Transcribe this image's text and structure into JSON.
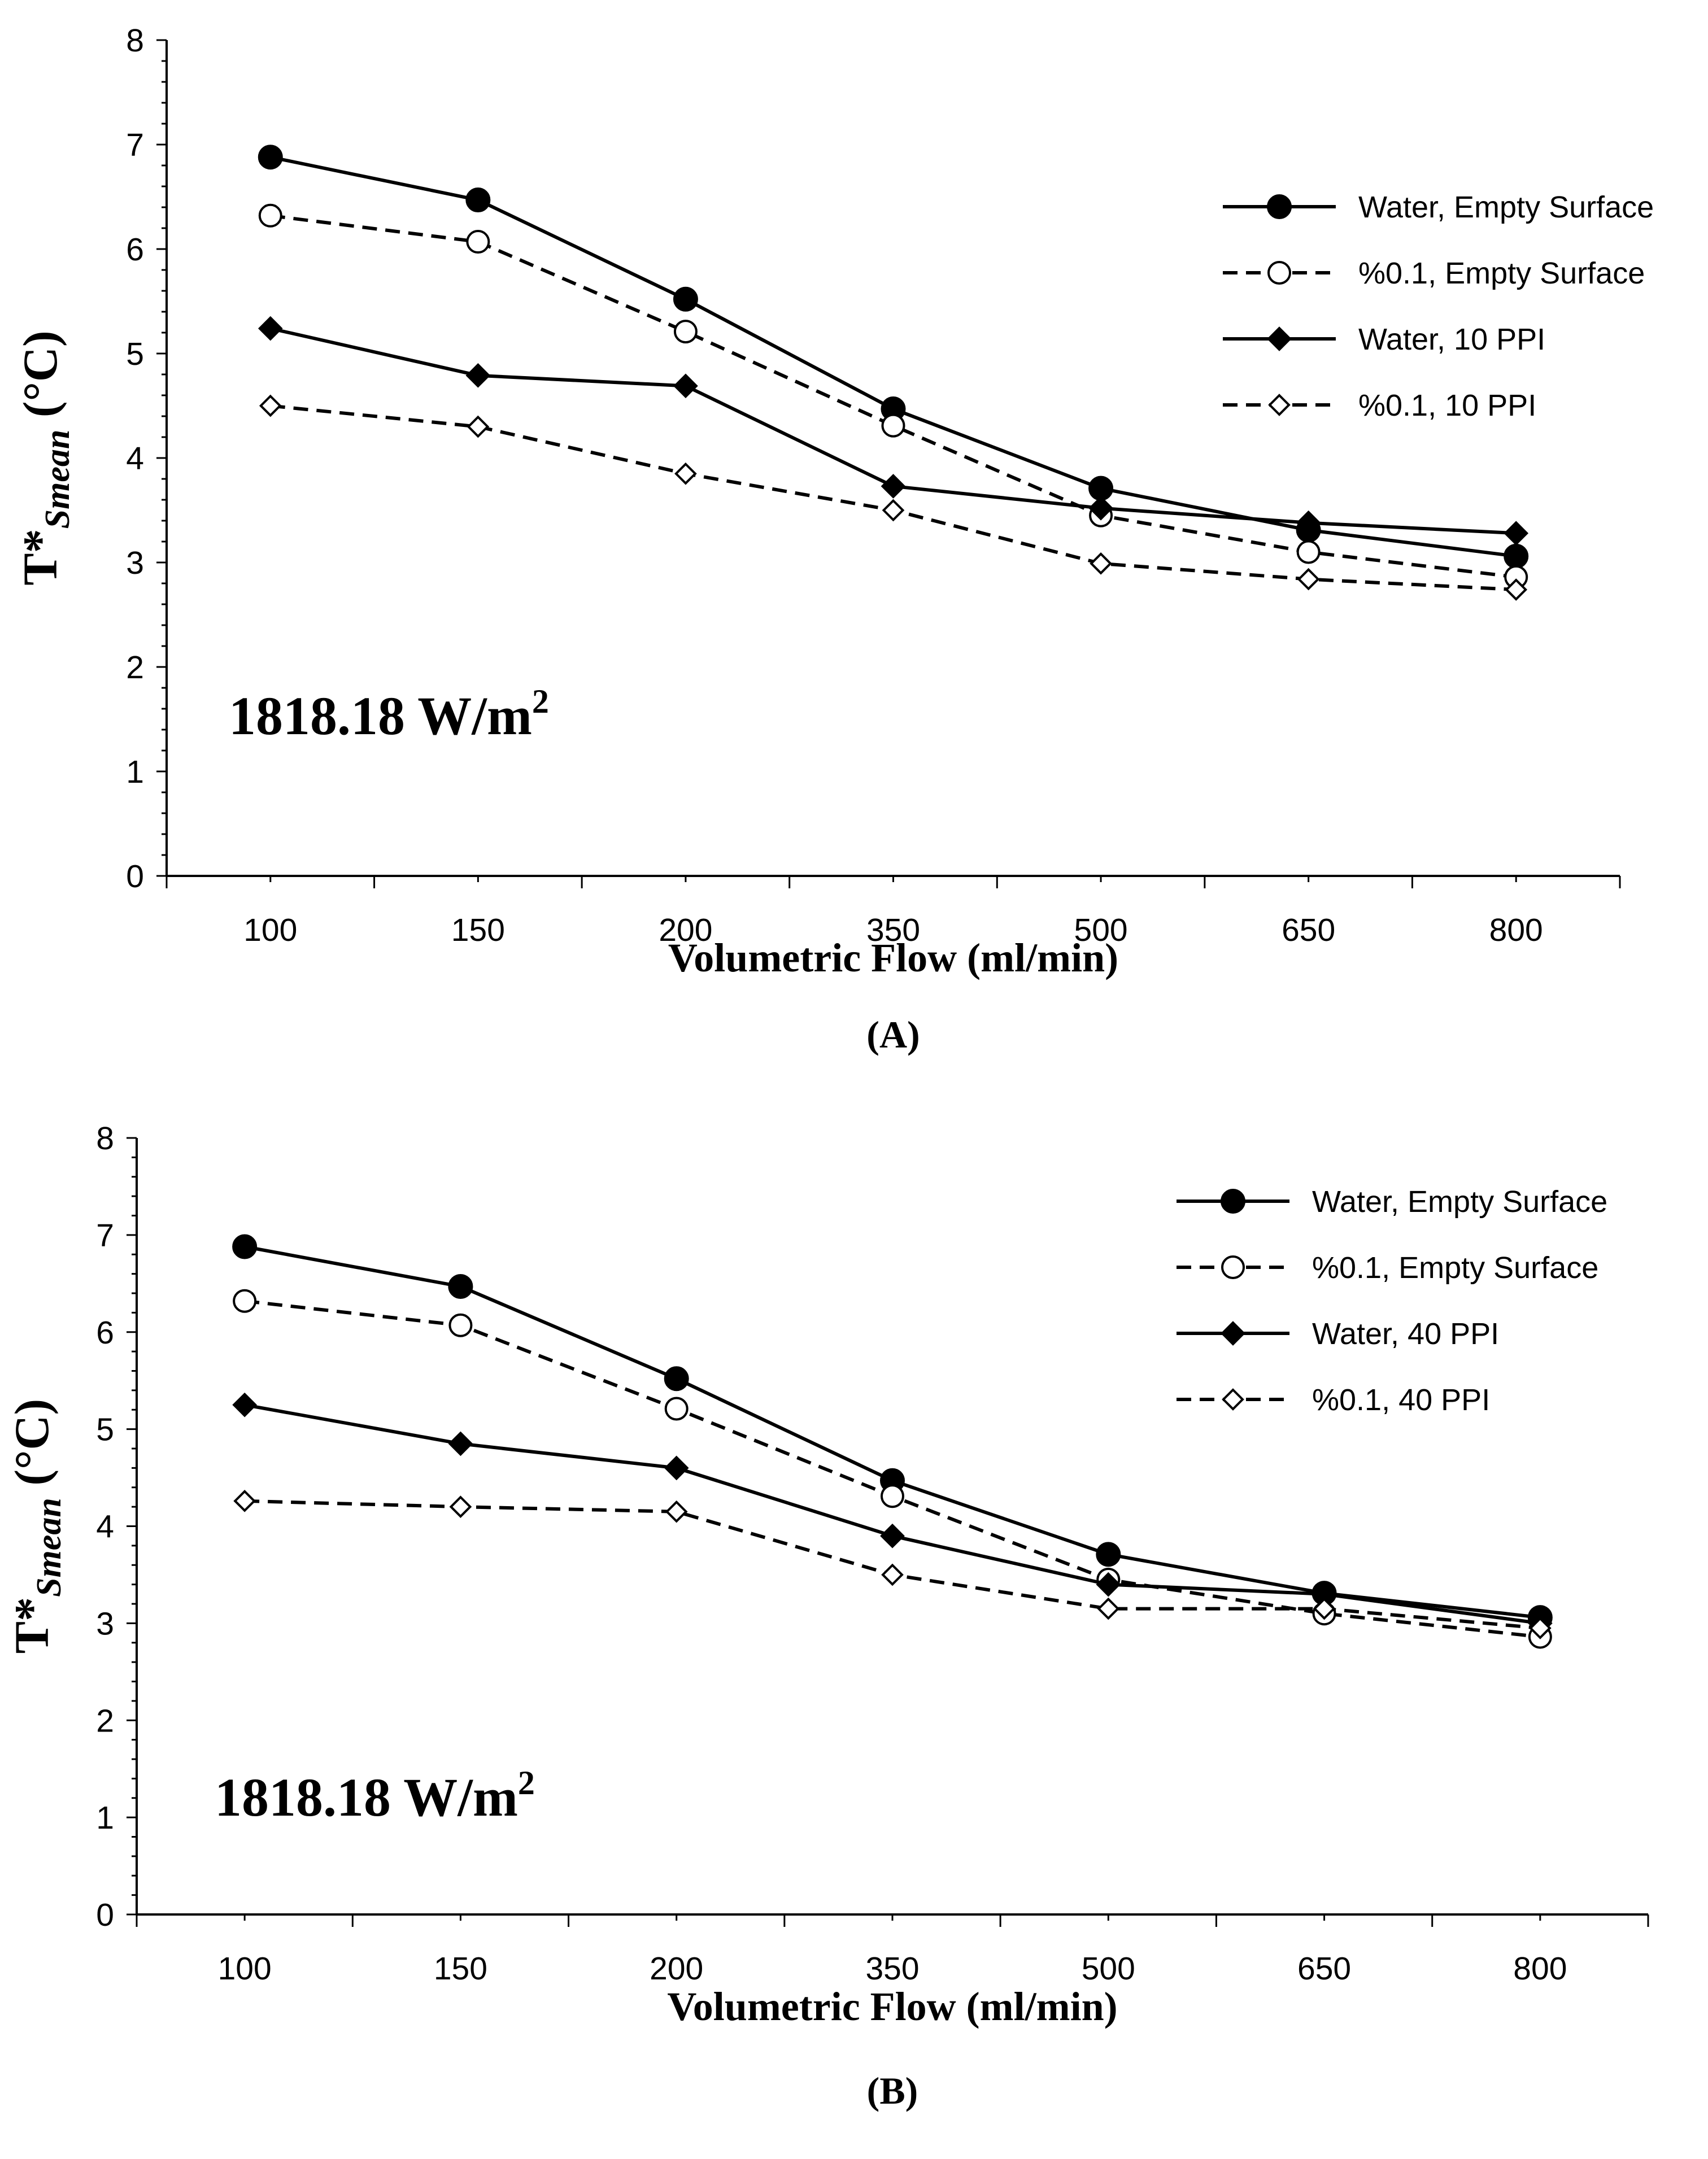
{
  "chart_data": [
    {
      "type": "line",
      "panel_label": "(A)",
      "categories": [
        "100",
        "150",
        "200",
        "350",
        "500",
        "650",
        "800"
      ],
      "xlabel": "Volumetric Flow (ml/min)",
      "ylabel": {
        "base": "T*",
        "subscript": "Smean",
        "unit": " (°C)"
      },
      "ylim": [
        0,
        8
      ],
      "yticks": [
        0,
        1,
        2,
        3,
        4,
        5,
        6,
        7,
        8
      ],
      "grid": false,
      "legend_position": "top-right",
      "annotation": {
        "text": "1818.18 W/m",
        "superscript": "2"
      },
      "series": [
        {
          "name": "Water, Empty Surface",
          "marker": "filled-circle",
          "line": "solid",
          "values": [
            6.88,
            6.47,
            5.52,
            4.47,
            3.71,
            3.31,
            3.06
          ]
        },
        {
          "name": "%0.1, Empty Surface",
          "marker": "open-circle",
          "line": "dashed",
          "values": [
            6.32,
            6.07,
            5.21,
            4.31,
            3.45,
            3.1,
            2.86
          ]
        },
        {
          "name": "Water, 10 PPI",
          "marker": "filled-diamond",
          "line": "solid",
          "values": [
            5.24,
            4.79,
            4.69,
            3.73,
            3.52,
            3.38,
            3.28
          ]
        },
        {
          "name": "%0.1, 10 PPI",
          "marker": "open-diamond",
          "line": "dashed",
          "values": [
            4.5,
            4.3,
            3.85,
            3.5,
            2.99,
            2.84,
            2.74
          ]
        }
      ]
    },
    {
      "type": "line",
      "panel_label": "(B)",
      "categories": [
        "100",
        "150",
        "200",
        "350",
        "500",
        "650",
        "800"
      ],
      "xlabel": "Volumetric Flow (ml/min)",
      "ylabel": {
        "base": "T*",
        "subscript": "Smean",
        "unit": " (°C)"
      },
      "ylim": [
        0,
        8
      ],
      "yticks": [
        0,
        1,
        2,
        3,
        4,
        5,
        6,
        7,
        8
      ],
      "grid": false,
      "legend_position": "top-right",
      "annotation": {
        "text": "1818.18 W/m",
        "superscript": "2"
      },
      "series": [
        {
          "name": "Water, Empty Surface",
          "marker": "filled-circle",
          "line": "solid",
          "values": [
            6.88,
            6.47,
            5.52,
            4.47,
            3.71,
            3.31,
            3.06
          ]
        },
        {
          "name": "%0.1, Empty Surface",
          "marker": "open-circle",
          "line": "dashed",
          "values": [
            6.32,
            6.07,
            5.21,
            4.31,
            3.45,
            3.1,
            2.86
          ]
        },
        {
          "name": "Water, 40 PPI",
          "marker": "filled-diamond",
          "line": "solid",
          "values": [
            5.25,
            4.85,
            4.6,
            3.9,
            3.4,
            3.3,
            3.0
          ]
        },
        {
          "name": "%0.1, 40 PPI",
          "marker": "open-diamond",
          "line": "dashed",
          "values": [
            4.26,
            4.2,
            4.15,
            3.5,
            3.15,
            3.15,
            2.95
          ]
        }
      ]
    }
  ]
}
